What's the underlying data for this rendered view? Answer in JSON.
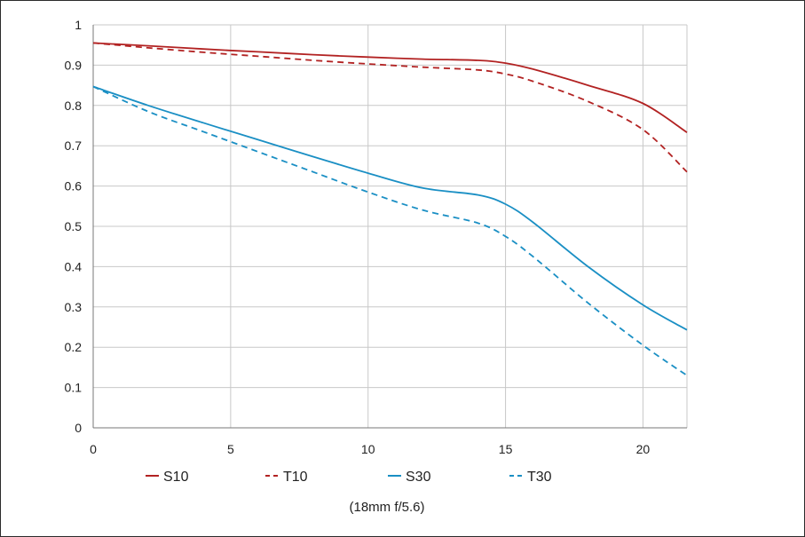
{
  "chart_data": {
    "type": "line",
    "caption": "(18mm f/5.6)",
    "xlim": [
      0,
      21.6
    ],
    "ylim": [
      0,
      1
    ],
    "x_ticks": [
      0,
      5,
      10,
      15,
      20
    ],
    "x_tick_labels": [
      "0",
      "5",
      "10",
      "15",
      "20"
    ],
    "y_ticks": [
      0,
      0.1,
      0.2,
      0.3,
      0.4,
      0.5,
      0.6,
      0.7,
      0.8,
      0.9,
      1
    ],
    "y_tick_labels": [
      "0",
      "0.1",
      "0.2",
      "0.3",
      "0.4",
      "0.5",
      "0.6",
      "0.7",
      "0.8",
      "0.9",
      "1"
    ],
    "grid": true,
    "legend_position": "bottom",
    "series": [
      {
        "name": "S10",
        "color": "#b22222",
        "dash": "solid",
        "x": [
          0,
          2,
          4,
          6,
          8,
          10,
          12,
          14,
          15,
          16,
          18,
          20,
          21.6
        ],
        "y": [
          0.955,
          0.948,
          0.94,
          0.933,
          0.926,
          0.92,
          0.915,
          0.912,
          0.905,
          0.89,
          0.85,
          0.805,
          0.733
        ]
      },
      {
        "name": "T10",
        "color": "#b22222",
        "dash": "dashed",
        "x": [
          0,
          2,
          4,
          6,
          8,
          10,
          12,
          14,
          15,
          16,
          18,
          20,
          21.6
        ],
        "y": [
          0.955,
          0.943,
          0.932,
          0.922,
          0.912,
          0.903,
          0.895,
          0.888,
          0.878,
          0.86,
          0.81,
          0.74,
          0.635
        ]
      },
      {
        "name": "S30",
        "color": "#1a8fc4",
        "dash": "solid",
        "x": [
          0,
          2,
          4,
          6,
          8,
          10,
          12,
          14,
          15,
          16,
          18,
          20,
          21.6
        ],
        "y": [
          0.847,
          0.8,
          0.757,
          0.715,
          0.673,
          0.632,
          0.595,
          0.578,
          0.555,
          0.51,
          0.4,
          0.305,
          0.243
        ]
      },
      {
        "name": "T30",
        "color": "#1a8fc4",
        "dash": "dashed",
        "x": [
          0,
          2,
          4,
          6,
          8,
          10,
          12,
          14,
          15,
          16,
          18,
          20,
          21.6
        ],
        "y": [
          0.847,
          0.785,
          0.735,
          0.685,
          0.635,
          0.585,
          0.54,
          0.508,
          0.475,
          0.425,
          0.31,
          0.205,
          0.13
        ]
      }
    ]
  }
}
